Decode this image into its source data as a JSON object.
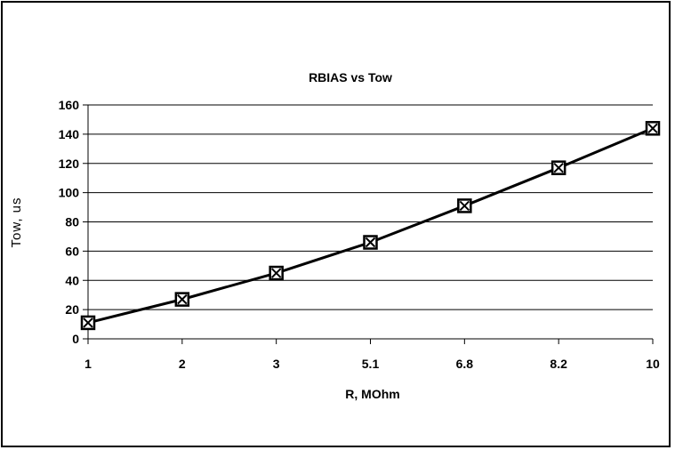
{
  "chart_data": {
    "type": "line",
    "title": "RBIAS vs Tow",
    "xlabel": "R, MOhm",
    "ylabel": "Tow, us",
    "categories": [
      "1",
      "2",
      "3",
      "5.1",
      "6.8",
      "8.2",
      "10"
    ],
    "series": [
      {
        "values": [
          11,
          27,
          45,
          66,
          91,
          117,
          144
        ],
        "marker": "square-x",
        "color": "#000000"
      }
    ],
    "ylim": [
      0,
      160
    ],
    "yticks": [
      "0",
      "20",
      "40",
      "60",
      "80",
      "100",
      "120",
      "140",
      "160"
    ],
    "grid": "horizontal",
    "legend": "none"
  }
}
